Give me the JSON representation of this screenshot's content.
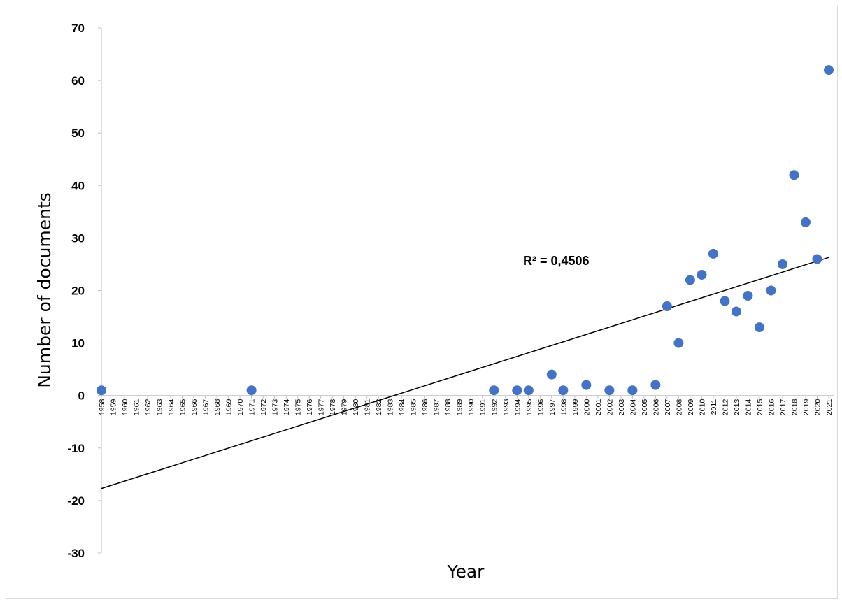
{
  "chart_data": {
    "type": "scatter",
    "title": "",
    "xlabel": "Year",
    "ylabel": "Number of documents",
    "xlim": [
      1958,
      2021
    ],
    "ylim": [
      -30,
      70
    ],
    "y_ticks": [
      -30,
      -20,
      -10,
      0,
      10,
      20,
      30,
      40,
      50,
      60,
      70
    ],
    "x_tick_labels": [
      "1958",
      "1959",
      "1960",
      "1961",
      "1962",
      "1963",
      "1964",
      "1965",
      "1966",
      "1967",
      "1968",
      "1969",
      "1970",
      "1971",
      "1972",
      "1973",
      "1974",
      "1975",
      "1976",
      "1977",
      "1978",
      "1979",
      "1980",
      "1981",
      "1982",
      "1983",
      "1984",
      "1985",
      "1986",
      "1987",
      "1988",
      "1989",
      "1990",
      "1991",
      "1992",
      "1993",
      "1994",
      "1995",
      "1996",
      "1997",
      "1998",
      "1999",
      "2000",
      "2001",
      "2002",
      "2003",
      "2004",
      "2005",
      "2006",
      "2007",
      "2008",
      "2009",
      "2010",
      "2011",
      "2012",
      "2013",
      "2014",
      "2015",
      "2016",
      "2017",
      "2018",
      "2019",
      "2020",
      "2021"
    ],
    "grid": false,
    "legend": "none",
    "point_color": "#4472c4",
    "trendline_color": "#000000",
    "points": [
      {
        "x": 1958,
        "y": 1
      },
      {
        "x": 1971,
        "y": 1
      },
      {
        "x": 1992,
        "y": 1
      },
      {
        "x": 1994,
        "y": 1
      },
      {
        "x": 1995,
        "y": 1
      },
      {
        "x": 1997,
        "y": 4
      },
      {
        "x": 1998,
        "y": 1
      },
      {
        "x": 2000,
        "y": 2
      },
      {
        "x": 2002,
        "y": 1
      },
      {
        "x": 2004,
        "y": 1
      },
      {
        "x": 2006,
        "y": 2
      },
      {
        "x": 2007,
        "y": 17
      },
      {
        "x": 2008,
        "y": 10
      },
      {
        "x": 2009,
        "y": 22
      },
      {
        "x": 2010,
        "y": 23
      },
      {
        "x": 2011,
        "y": 27
      },
      {
        "x": 2012,
        "y": 18
      },
      {
        "x": 2013,
        "y": 16
      },
      {
        "x": 2014,
        "y": 19
      },
      {
        "x": 2015,
        "y": 13
      },
      {
        "x": 2016,
        "y": 20
      },
      {
        "x": 2017,
        "y": 25
      },
      {
        "x": 2018,
        "y": 42
      },
      {
        "x": 2019,
        "y": 33
      },
      {
        "x": 2020,
        "y": 26
      },
      {
        "x": 2021,
        "y": 62
      }
    ],
    "trendline": {
      "type": "linear",
      "start": {
        "x": 1958,
        "y": -17.7
      },
      "end": {
        "x": 2021,
        "y": 26.3
      }
    },
    "annotations": [
      {
        "text": "R² = 0,4506"
      }
    ]
  }
}
